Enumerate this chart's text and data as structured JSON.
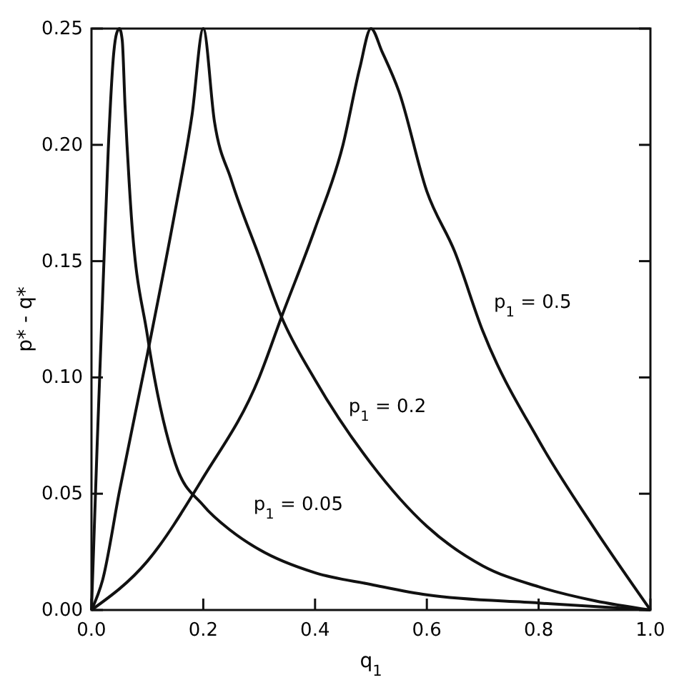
{
  "chart_data": {
    "type": "line",
    "xlabel": "q$_{1}$",
    "ylabel": "p* - q*",
    "xlim": [
      0,
      1
    ],
    "ylim": [
      0,
      0.25
    ],
    "xticks": [
      {
        "value": 0,
        "label": "0.0"
      },
      0.2,
      0.4,
      0.6,
      0.8,
      {
        "value": 1,
        "label": "1.0"
      }
    ],
    "yticks": [
      {
        "value": 0,
        "label": "0.00"
      },
      0.05,
      {
        "value": 0.1,
        "label": "0.10"
      },
      0.15,
      {
        "value": 0.2,
        "label": "0.20"
      },
      0.25
    ],
    "grid": false,
    "line_style": "solid",
    "marker": "none",
    "series": [
      {
        "color": "#111111",
        "x": [
          0,
          0.01,
          0.02,
          0.03,
          0.04,
          0.045,
          0.05,
          0.055,
          0.06,
          0.07,
          0.1,
          0.15,
          0.2,
          0.25,
          0.3,
          0.4,
          0.5,
          0.6,
          0.8,
          1.0
        ],
        "values": [
          0,
          0.07,
          0.135,
          0.198,
          0.24,
          0.248,
          0.25,
          0.245,
          0.217,
          0.174,
          0.118,
          0.063,
          0.045,
          0.034,
          0.026,
          0.016,
          0.011,
          0.0065,
          0.003,
          0
        ]
      },
      {
        "color": "#111111",
        "x": [
          0,
          0.02,
          0.05,
          0.1,
          0.15,
          0.18,
          0.2,
          0.22,
          0.25,
          0.3,
          0.34,
          0.4,
          0.5,
          0.6,
          0.7,
          0.8,
          0.9,
          1.0
        ],
        "values": [
          0,
          0.013,
          0.051,
          0.11,
          0.172,
          0.213,
          0.25,
          0.21,
          0.185,
          0.152,
          0.126,
          0.099,
          0.063,
          0.036,
          0.019,
          0.01,
          0.004,
          0
        ]
      },
      {
        "color": "#111111",
        "x": [
          0,
          0.1,
          0.2,
          0.3,
          0.34,
          0.4,
          0.45,
          0.48,
          0.5,
          0.52,
          0.55,
          0.6,
          0.65,
          0.7,
          0.8,
          0.9,
          1.0
        ],
        "values": [
          0,
          0.021,
          0.057,
          0.1,
          0.126,
          0.164,
          0.2,
          0.233,
          0.25,
          0.24,
          0.223,
          0.18,
          0.154,
          0.12,
          0.073,
          0.035,
          0
        ]
      }
    ],
    "annotations": [
      "p$_{1}$ = 0.05",
      "p$_{1}$ = 0.2",
      "p$_{1}$ = 0.5"
    ]
  }
}
